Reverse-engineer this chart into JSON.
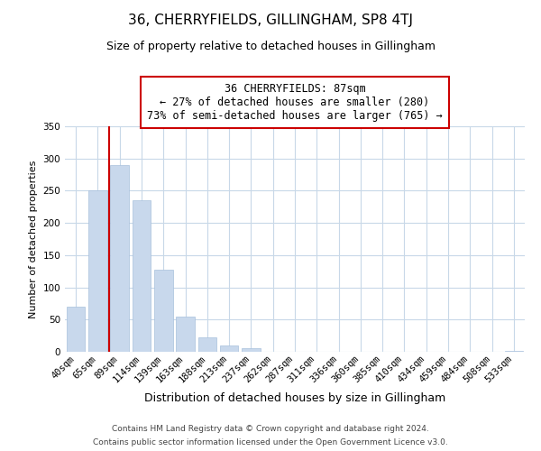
{
  "title": "36, CHERRYFIELDS, GILLINGHAM, SP8 4TJ",
  "subtitle": "Size of property relative to detached houses in Gillingham",
  "xlabel": "Distribution of detached houses by size in Gillingham",
  "ylabel": "Number of detached properties",
  "bar_labels": [
    "40sqm",
    "65sqm",
    "89sqm",
    "114sqm",
    "139sqm",
    "163sqm",
    "188sqm",
    "213sqm",
    "237sqm",
    "262sqm",
    "287sqm",
    "311sqm",
    "336sqm",
    "360sqm",
    "385sqm",
    "410sqm",
    "434sqm",
    "459sqm",
    "484sqm",
    "508sqm",
    "533sqm"
  ],
  "bar_values": [
    70,
    250,
    290,
    235,
    128,
    54,
    22,
    10,
    5,
    0,
    0,
    0,
    0,
    0,
    0,
    0,
    0,
    0,
    0,
    0,
    2
  ],
  "bar_color": "#c8d8ec",
  "bar_edge_color": "#a8c0dc",
  "highlight_line_color": "#cc0000",
  "red_line_x": 1.5,
  "annotation_title": "36 CHERRYFIELDS: 87sqm",
  "annotation_line1": "← 27% of detached houses are smaller (280)",
  "annotation_line2": "73% of semi-detached houses are larger (765) →",
  "annotation_box_edge_color": "#cc0000",
  "annotation_box_face_color": "#ffffff",
  "ylim": [
    0,
    350
  ],
  "yticks": [
    0,
    50,
    100,
    150,
    200,
    250,
    300,
    350
  ],
  "footer_line1": "Contains HM Land Registry data © Crown copyright and database right 2024.",
  "footer_line2": "Contains public sector information licensed under the Open Government Licence v3.0.",
  "grid_color": "#c8d8e8",
  "background_color": "#ffffff",
  "fig_width": 6.0,
  "fig_height": 5.0,
  "title_fontsize": 11,
  "subtitle_fontsize": 9,
  "xlabel_fontsize": 9,
  "ylabel_fontsize": 8,
  "tick_fontsize": 7.5,
  "annotation_fontsize": 8.5,
  "footer_fontsize": 6.5
}
